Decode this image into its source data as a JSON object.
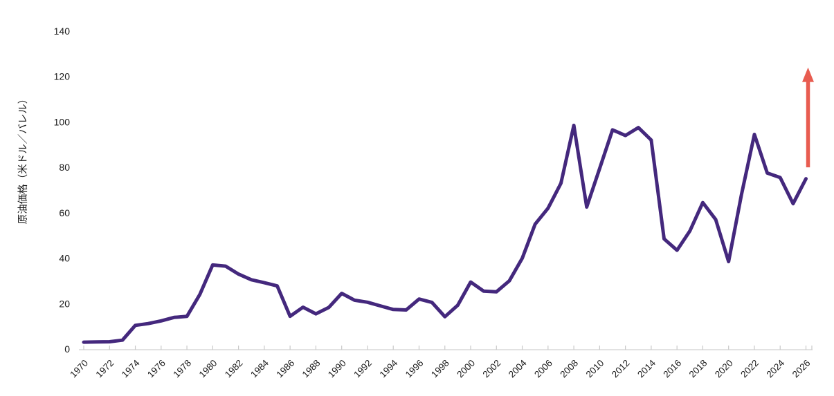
{
  "page": {
    "background_color": "#ffffff"
  },
  "chart_data": {
    "type": "line",
    "title": "",
    "xlabel": "",
    "ylabel": "原油価格（米ドル／バレル）",
    "ylim": [
      0,
      140
    ],
    "yticks": [
      0,
      20,
      40,
      60,
      80,
      100,
      120,
      140
    ],
    "x_start": 1970,
    "x_end": 2026,
    "xtick_labels": [
      "1970",
      "1972",
      "1974",
      "1976",
      "1978",
      "1980",
      "1982",
      "1984",
      "1986",
      "1988",
      "1990",
      "1992",
      "1994",
      "1996",
      "1998",
      "2000",
      "2002",
      "2004",
      "2006",
      "2008",
      "2010",
      "2012",
      "2014",
      "2016",
      "2018",
      "2020",
      "2022",
      "2024",
      "2026"
    ],
    "grid": false,
    "legend_position": "none",
    "axis_color": "#d9d9d9",
    "tick_label_color": "#1a1a1a",
    "series": [
      {
        "name": "crude-oil-price",
        "color": "#44287d",
        "line_width": 5,
        "x": [
          1970,
          1971,
          1972,
          1973,
          1974,
          1975,
          1976,
          1977,
          1978,
          1979,
          1980,
          1981,
          1982,
          1983,
          1984,
          1985,
          1986,
          1987,
          1988,
          1989,
          1990,
          1991,
          1992,
          1993,
          1994,
          1995,
          1996,
          1997,
          1998,
          1999,
          2000,
          2001,
          2002,
          2003,
          2004,
          2005,
          2006,
          2007,
          2008,
          2009,
          2010,
          2011,
          2012,
          2013,
          2014,
          2015,
          2016,
          2017,
          2018,
          2019,
          2020,
          2021,
          2022,
          2023,
          2024,
          2025,
          2026
        ],
        "values": [
          3.0,
          3.1,
          3.2,
          3.9,
          10.4,
          11.2,
          12.4,
          13.9,
          14.4,
          24.0,
          37.0,
          36.5,
          33.0,
          30.5,
          29.2,
          27.8,
          14.4,
          18.4,
          15.5,
          18.3,
          24.5,
          21.5,
          20.6,
          19.0,
          17.4,
          17.2,
          22.0,
          20.5,
          14.2,
          19.3,
          29.5,
          25.5,
          25.2,
          30.0,
          40.0,
          55.0,
          62.0,
          73.0,
          98.5,
          62.5,
          79.5,
          96.5,
          94.0,
          97.5,
          92.0,
          48.5,
          43.5,
          52.0,
          64.5,
          57.0,
          38.5,
          68.0,
          94.5,
          77.5,
          75.5,
          64.0,
          75.0
        ]
      }
    ],
    "annotations": [
      {
        "type": "arrow-up",
        "name": "price-upside-arrow",
        "x": 2026,
        "value_from": 80,
        "value_to": 124,
        "color": "#e85c50"
      }
    ]
  }
}
